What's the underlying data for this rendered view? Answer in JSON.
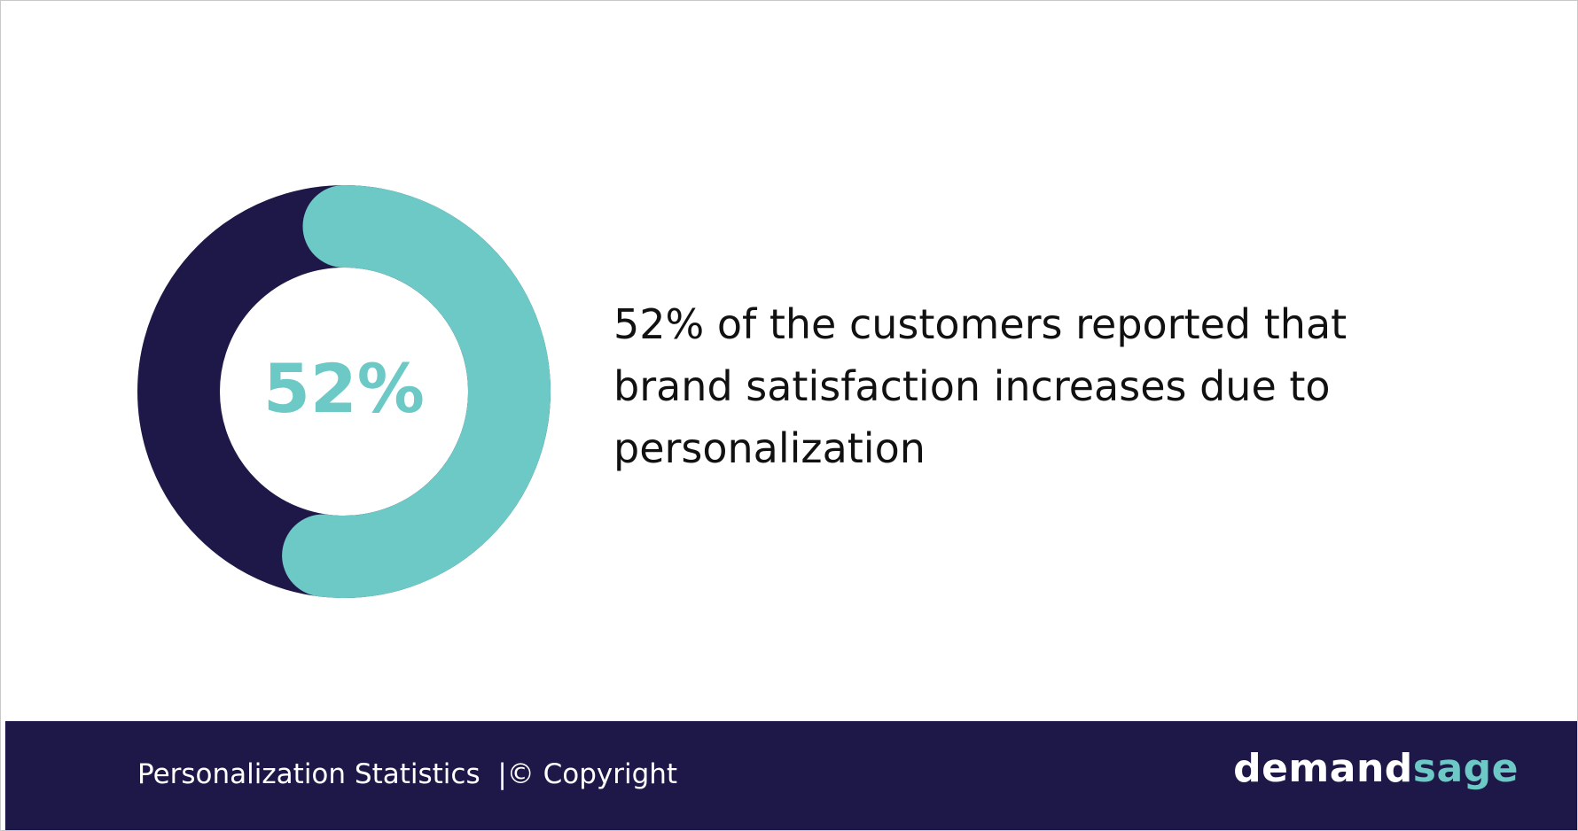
{
  "chart_data": {
    "type": "donut",
    "values": [
      52
    ],
    "value_labels": [
      "52%"
    ],
    "max": 100,
    "color": "#6cc9c5",
    "track_color": "#1e1848",
    "description": "52% of the customers reported that brand satisfaction increases due to personalization"
  },
  "footer": {
    "caption": "Personalization Statistics  |© Copyright",
    "logo": [
      "demand",
      "sage"
    ]
  }
}
